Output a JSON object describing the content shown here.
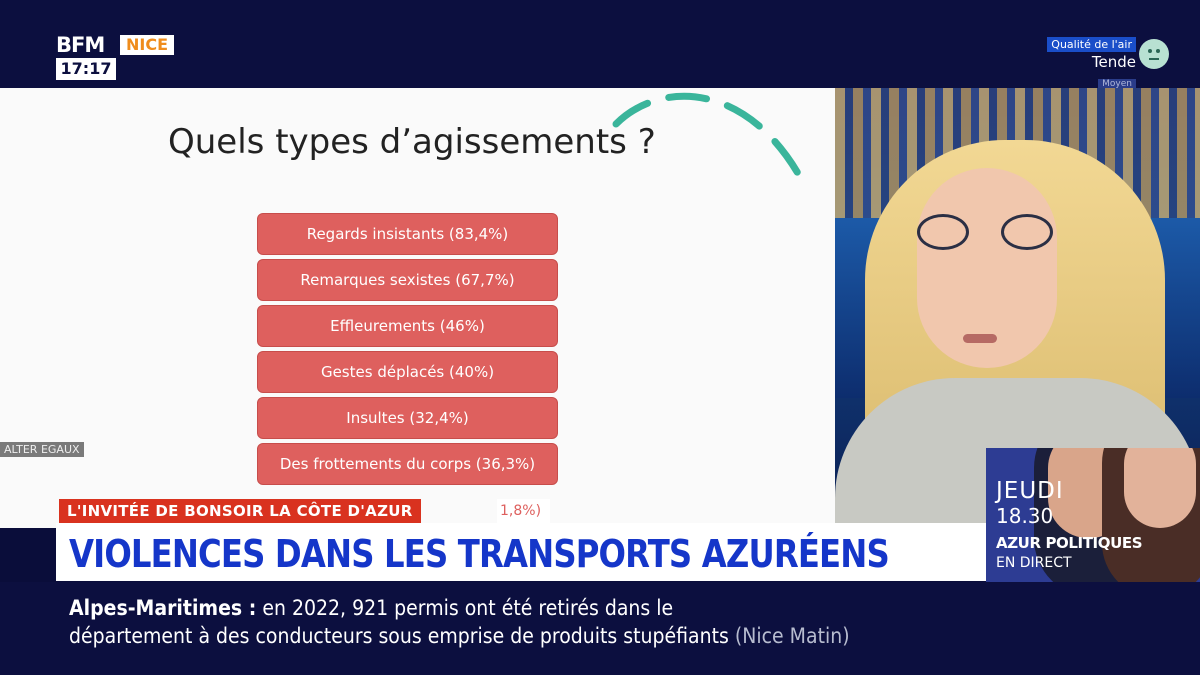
{
  "channel": {
    "brand": "BFM",
    "region": "NICE",
    "clock": "17:17"
  },
  "air_quality": {
    "label": "Qualité de l'air",
    "city": "Tende",
    "level": "Moyen"
  },
  "slide": {
    "title": "Quels types d’agissements ?",
    "items": [
      "Regards insistants (83,4%)",
      "Remarques sexistes (67,7%)",
      "Effleurements (46%)",
      "Gestes déplacés (40%)",
      "Insultes (32,4%)",
      "Des frottements du corps (36,3%)"
    ],
    "partial_item": "1,8%)",
    "source_tag": "ALTER EGAUX",
    "accent_color": "#de605e",
    "arc_color": "#3ab59b"
  },
  "lower_third": {
    "tag": "L'INVITÉE DE BONSOIR LA CÔTE D'AZUR",
    "headline": "VIOLENCES DANS LES TRANSPORTS AZURÉENS",
    "headline_color": "#1536c9",
    "tag_color": "#d9321f"
  },
  "promo": {
    "day": "JEUDI",
    "time": "18.30",
    "show": "AZUR POLITIQUES",
    "live": "EN DIRECT"
  },
  "ticker": {
    "place": "Alpes-Maritimes :",
    "line1": "en 2022, 921 permis ont été retirés dans le",
    "line2": "département à des conducteurs sous emprise de produits stupéfiants",
    "source": "(Nice Matin)"
  }
}
